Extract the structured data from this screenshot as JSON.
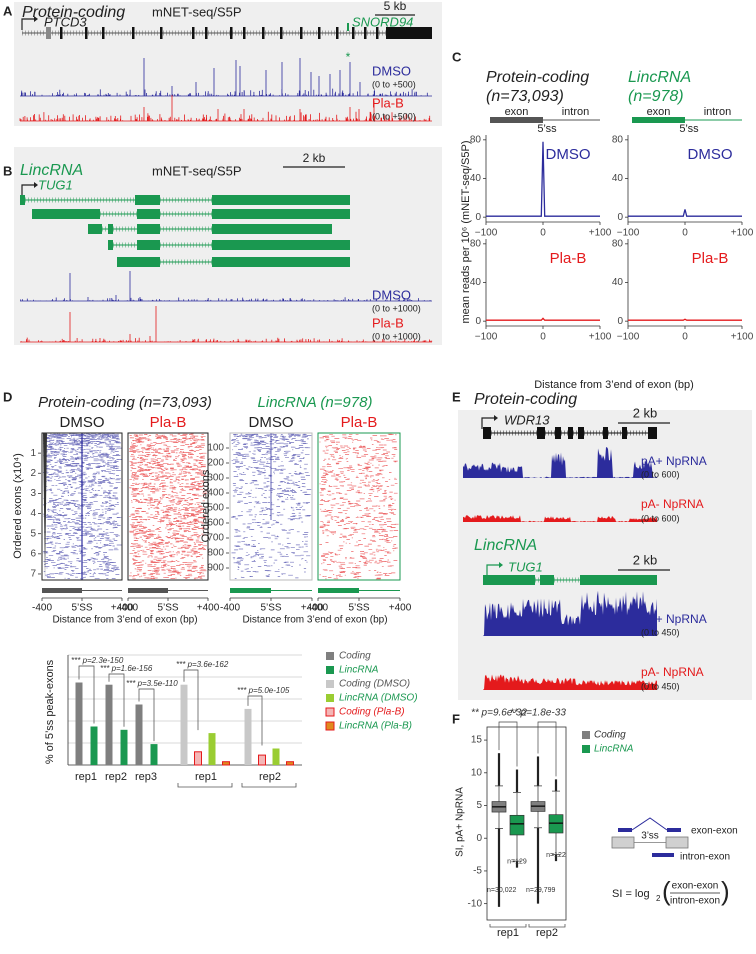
{
  "panels": {
    "A": {
      "label": "A",
      "title": "Protein-coding",
      "assay": "mNET-seq/S5P",
      "scale": "5 kb",
      "gene": "PTCD3",
      "snorna": "SNORD94",
      "marker": "*",
      "tracks": [
        {
          "name": "DMSO",
          "range": "(0 to +500)"
        },
        {
          "name": "Pla-B",
          "range": "(0 to +500)"
        }
      ]
    },
    "B": {
      "label": "B",
      "title": "LincRNA",
      "assay": "mNET-seq/S5P",
      "scale": "2 kb",
      "gene": "TUG1",
      "tracks": [
        {
          "name": "DMSO",
          "range": "(0 to +1000)"
        },
        {
          "name": "Pla-B",
          "range": "(0 to +1000)"
        }
      ]
    },
    "C": {
      "label": "C",
      "x_label": "Distance from 3’end of exon (bp)",
      "y_label": "mean reads per 10⁶ (mNET-seq/S5P)",
      "columns": [
        {
          "title": "Protein-coding",
          "n": "(n=73,093)"
        },
        {
          "title": "LincRNA",
          "n": "(n=978)"
        }
      ],
      "exon": "exon",
      "intron": "intron",
      "ss": "5’ss"
    },
    "D": {
      "label": "D",
      "conditions": [
        "DMSO",
        "Pla-B"
      ],
      "xticks": [
        "-400",
        "5’SS",
        "+400"
      ],
      "x_label": "Distance from 3’end of exon (bp)",
      "groups": [
        {
          "title": "Protein-coding (n=73,093)",
          "y_label": "Ordered exons (x10⁴)",
          "ylim": [
            0,
            7.3
          ],
          "yticks": [
            1,
            2,
            3,
            4,
            5,
            6,
            7
          ]
        },
        {
          "title": "LincRNA (n=978)",
          "y_label": "Ordered exons",
          "ylim": [
            0,
            980
          ],
          "yticks": [
            100,
            200,
            300,
            400,
            500,
            600,
            700,
            800,
            900
          ]
        }
      ]
    },
    "E": {
      "label": "E",
      "sections": [
        {
          "title": "Protein-coding",
          "gene": "WDR13",
          "scale": "2 kb",
          "tracks": [
            {
              "name": "pA+ NpRNA",
              "range": "(0 to 600)"
            },
            {
              "name": "pA- NpRNA",
              "range": "(0 to 600)"
            }
          ]
        },
        {
          "title": "LincRNA",
          "gene": "TUG1",
          "scale": "2 kb",
          "tracks": [
            {
              "name": "pA+ NpRNA",
              "range": "(0 to 450)"
            },
            {
              "name": "pA- NpRNA",
              "range": "(0 to 450)"
            }
          ]
        }
      ]
    },
    "F": {
      "label": "F",
      "diagram": {
        "top": "exon-exon",
        "mid": "3’ss",
        "bottom": "intron-exon"
      },
      "formula": {
        "lhs": "SI = log",
        "sub": "2",
        "open": "(",
        "num": "exon-exon",
        "den": "intron-exon",
        "close": ")"
      }
    }
  },
  "chart_data": [
    {
      "type": "bar",
      "y_label": "% of 5’ss peak-exons",
      "categories": [
        "rep1",
        "rep2",
        "rep3"
      ],
      "ylim": [
        0,
        100
      ],
      "yticks": [
        20,
        40,
        60,
        80,
        100
      ],
      "grid": true,
      "series": [
        {
          "name": "Coding",
          "color": "#7f7f7f",
          "values": [
            75,
            73,
            55
          ]
        },
        {
          "name": "LincRNA",
          "color": "#1a9850",
          "values": [
            35,
            32,
            19
          ]
        }
      ],
      "annotations": [
        "*** p=2.3e-150",
        "*** p=1.6e-156",
        "*** p=3.5e-110"
      ]
    },
    {
      "type": "bar",
      "categories": [
        "rep1",
        "rep2"
      ],
      "ylim": [
        0,
        100
      ],
      "series": [
        {
          "name": "Coding (DMSO)",
          "color": "#c8c8c8",
          "values": [
            73,
            51
          ]
        },
        {
          "name": "LincRNA (DMSO)",
          "color": "#9acd32",
          "values": [
            29,
            15
          ]
        },
        {
          "name": "Coding (Pla-B)",
          "color": "#f4b6b6",
          "edgecolor": "#e41a1c",
          "values": [
            12,
            9
          ]
        },
        {
          "name": "LincRNA (Pla-B)",
          "color": "#e08a1e",
          "edgecolor": "#e41a1c",
          "values": [
            3,
            3
          ]
        }
      ],
      "annotations": [
        "*** p=3.6e-162",
        "*** p=5.0e-105"
      ]
    },
    {
      "type": "box",
      "y_label": "SI, pA+ NpRNA",
      "categories": [
        "rep1",
        "rep2"
      ],
      "ylim": [
        -12.5,
        17
      ],
      "yticks": [
        15,
        10,
        5,
        0,
        -5,
        -10
      ],
      "series": [
        {
          "name": "Coding",
          "color": "#7f7f7f",
          "boxes": [
            {
              "min": -10.5,
              "whisker_low": 1.5,
              "q1": 4,
              "median": 4.8,
              "q3": 5.6,
              "whisker_high": 8,
              "max": 13
            },
            {
              "min": -10,
              "whisker_low": 1.6,
              "q1": 4.1,
              "median": 4.9,
              "q3": 5.6,
              "whisker_high": 8,
              "max": 12.5
            }
          ],
          "n": [
            "n=30,022",
            "n=29,799"
          ]
        },
        {
          "name": "LincRNA",
          "color": "#1a9850",
          "boxes": [
            {
              "min": -4.5,
              "whisker_low": -3.5,
              "q1": 0.5,
              "median": 2.2,
              "q3": 3.5,
              "whisker_high": 7,
              "max": 10.5
            },
            {
              "min": -3.5,
              "whisker_low": -2.5,
              "q1": 0.8,
              "median": 2.3,
              "q3": 3.6,
              "whisker_high": 7.2,
              "max": 9
            }
          ],
          "n": [
            "n=129",
            "n=122"
          ]
        }
      ],
      "annotations": [
        "** p=9.6e-32",
        "** p=1.8e-33"
      ]
    },
    {
      "type": "line",
      "title": "DMSO",
      "color": "#2c2c9c",
      "x": [
        -100,
        -3,
        0,
        3,
        100
      ],
      "values": [
        1,
        1,
        78,
        1,
        1
      ],
      "xlim": [
        -100,
        100
      ],
      "ylim": [
        -5,
        85
      ],
      "yticks": [
        0,
        40,
        80
      ],
      "xticks": [
        {
          "value": -100,
          "label": "−100"
        },
        0,
        {
          "value": 100,
          "label": "+100"
        }
      ]
    },
    {
      "type": "line",
      "title": "Pla-B",
      "color": "#e41a1c",
      "x": [
        -100,
        -3,
        0,
        3,
        100
      ],
      "values": [
        1,
        1,
        3,
        1,
        1
      ],
      "xlim": [
        -100,
        100
      ],
      "ylim": [
        -5,
        85
      ],
      "yticks": [
        0,
        40,
        80
      ],
      "xticks": [
        {
          "value": -100,
          "label": "−100"
        },
        0,
        {
          "value": 100,
          "label": "+100"
        }
      ]
    },
    {
      "type": "line",
      "title": "DMSO",
      "color": "#2c2c9c",
      "x": [
        -100,
        -3,
        0,
        3,
        100
      ],
      "values": [
        1,
        1,
        8,
        1,
        1
      ],
      "xlim": [
        -100,
        100
      ],
      "ylim": [
        -5,
        85
      ],
      "yticks": [
        0,
        40,
        80
      ],
      "xticks": [
        {
          "value": -100,
          "label": "−100"
        },
        0,
        {
          "value": 100,
          "label": "+100"
        }
      ]
    },
    {
      "type": "line",
      "title": "Pla-B",
      "color": "#e41a1c",
      "x": [
        -100,
        -3,
        0,
        3,
        100
      ],
      "values": [
        1,
        1,
        2,
        1,
        1
      ],
      "xlim": [
        -100,
        100
      ],
      "ylim": [
        -5,
        85
      ],
      "yticks": [
        0,
        40,
        80
      ],
      "xticks": [
        {
          "value": -100,
          "label": "−100"
        },
        0,
        {
          "value": 100,
          "label": "+100"
        }
      ]
    }
  ]
}
